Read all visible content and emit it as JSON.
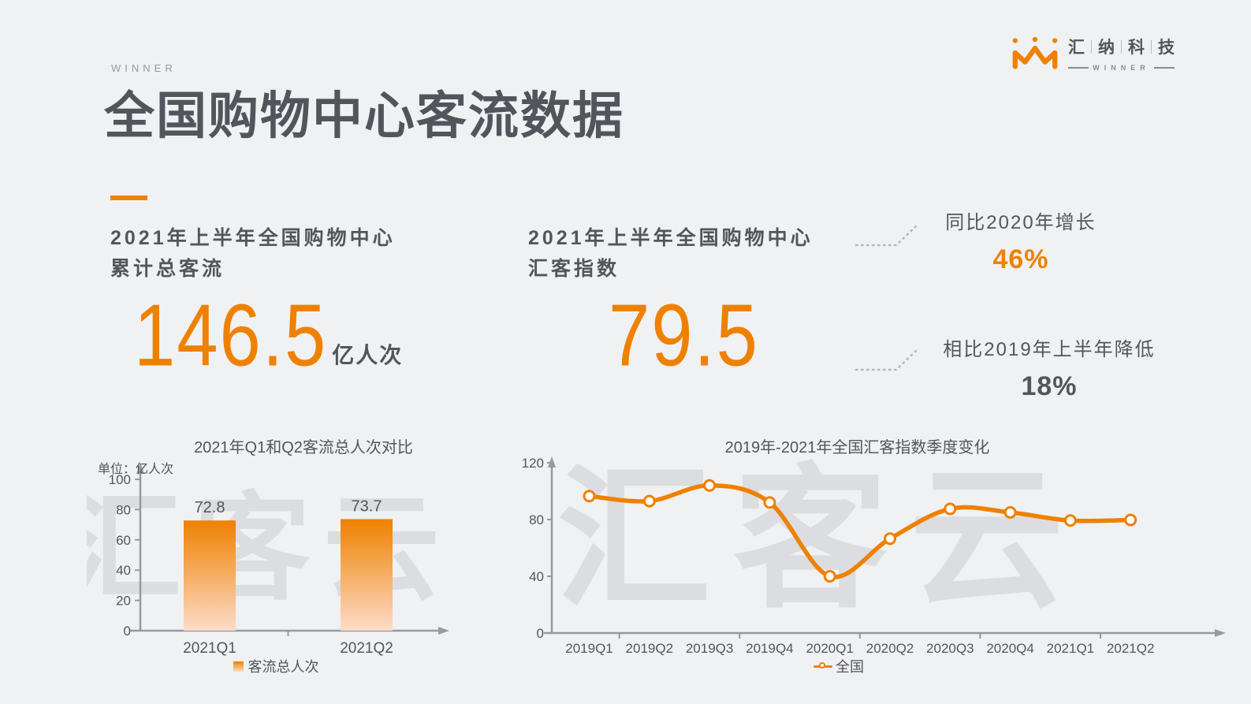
{
  "page": {
    "background": "#f0f1f2",
    "accent": "#ee8100",
    "dark_text": "#54555c",
    "muted_text": "#97999e",
    "axis_color": "#97999e",
    "watermark_color": "#dbdde0"
  },
  "header": {
    "winner_label": "WINNER",
    "title": "全国购物中心客流数据",
    "logo": {
      "chars": [
        "汇",
        "纳",
        "科",
        "技"
      ],
      "sub": "WINNER",
      "crown_icon": "winner-crown-icon",
      "color": "#ee8100"
    }
  },
  "stats": {
    "left": {
      "heading_line1": "2021年上半年全国购物中心",
      "heading_line2": "累计总客流",
      "value": "146.5",
      "unit": "亿人次"
    },
    "right": {
      "heading_line1": "2021年上半年全国购物中心",
      "heading_line2": "汇客指数",
      "value": "79.5"
    },
    "annotations": [
      {
        "label": "同比2020年增长",
        "value": "46%",
        "value_color": "#ee8100"
      },
      {
        "label": "相比2019年上半年降低",
        "value": "18%",
        "value_color": "#54555c"
      }
    ]
  },
  "watermark": "汇客云",
  "chart_data": [
    {
      "type": "bar",
      "title": "2021年Q1和Q2客流总人次对比",
      "unit_label": "单位：亿人次",
      "categories": [
        "2021Q1",
        "2021Q2"
      ],
      "values": [
        72.8,
        73.7
      ],
      "ylim": [
        0,
        100
      ],
      "yticks": [
        0,
        20,
        40,
        60,
        80,
        100
      ],
      "legend": "客流总人次",
      "legend_position": "bottom",
      "grid": false,
      "bar_color_top": "#ee8100",
      "bar_color_bottom": "#fcdcc9"
    },
    {
      "type": "line",
      "title": "2019年-2021年全国汇客指数季度变化",
      "categories": [
        "2019Q1",
        "2019Q2",
        "2019Q3",
        "2019Q4",
        "2020Q1",
        "2020Q2",
        "2020Q3",
        "2020Q4",
        "2021Q1",
        "2021Q2"
      ],
      "series": [
        {
          "name": "全国",
          "values": [
            96.5,
            93,
            104,
            92,
            40,
            66.5,
            87.5,
            85,
            79.3,
            79.7
          ]
        }
      ],
      "ylim": [
        0,
        120
      ],
      "yticks": [
        0,
        40,
        80,
        120
      ],
      "legend": "全国",
      "legend_position": "bottom",
      "grid": false,
      "line_color": "#ee8100",
      "marker": "circle-white-fill"
    }
  ]
}
